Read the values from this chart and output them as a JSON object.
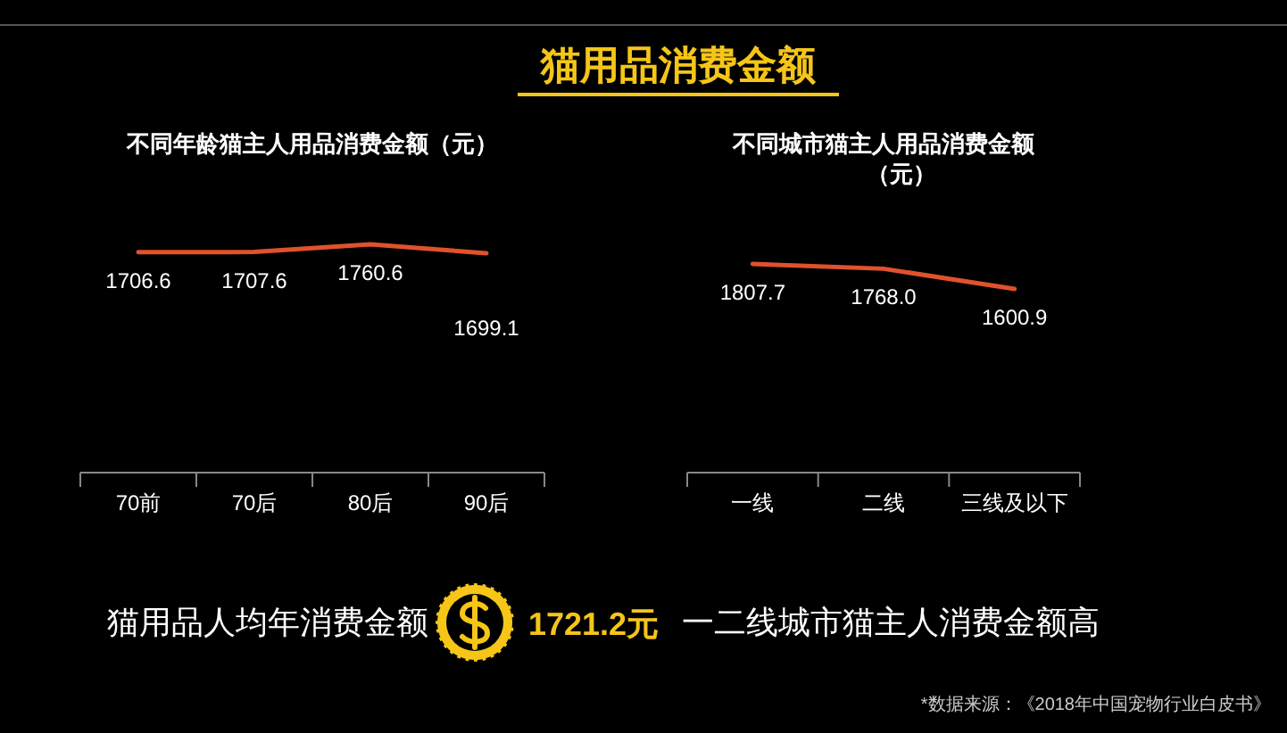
{
  "chart_data": [
    {
      "type": "other",
      "title": "猫用品消费金额",
      "annotations": [
        "猫用品人均年消费金额",
        "1721.2元",
        "一二线城市猫主人消费金额高",
        "*数据来源：《2018年中国宠物行业白皮书》"
      ]
    },
    {
      "type": "line",
      "title": "不同年龄猫主人用品消费金额（元）",
      "categories": [
        "70前",
        "70后",
        "80后",
        "90后"
      ],
      "series": [
        {
          "color": "#e0522b",
          "values": [
            1706.6,
            1707.6,
            1760.6,
            1699.1
          ]
        }
      ],
      "data_labels": true,
      "marker": "none"
    },
    {
      "type": "line",
      "title": "不同城市猫主人用品消费金额（元）",
      "categories": [
        "一线",
        "二线",
        "三线及以下"
      ],
      "series": [
        {
          "color": "#e0522b",
          "values": [
            1807.7,
            1768.0,
            1600.9
          ],
          "value_labels": [
            "1807.7",
            "1768.0",
            "1600.9"
          ]
        }
      ],
      "marker": "none"
    }
  ]
}
